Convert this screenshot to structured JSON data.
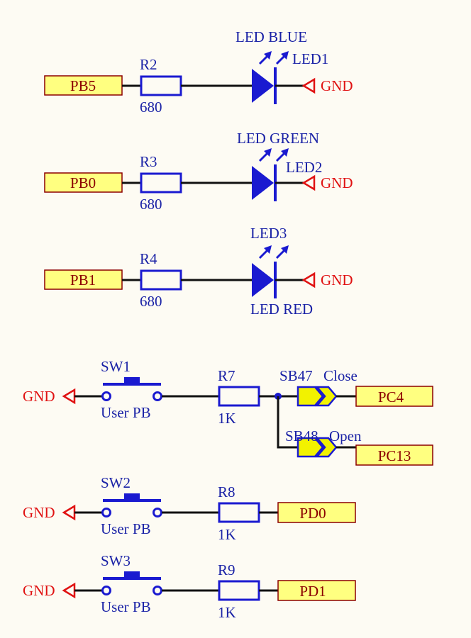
{
  "colors": {
    "background": "#fdfbf3",
    "wire": "#111111",
    "component": "#1a1ad0",
    "component_label": "#1a22a6",
    "ground": "#e01212",
    "port_fill": "#ffff80",
    "port_text": "#8b0000",
    "jumper_fill": "#f2f200"
  },
  "leds": [
    {
      "port": "PB5",
      "res_ref": "R2",
      "res_val": "680",
      "led_ref": "LED1",
      "led_name": "LED BLUE",
      "gnd": "GND"
    },
    {
      "port": "PB0",
      "res_ref": "R3",
      "res_val": "680",
      "led_ref": "LED2",
      "led_name": "LED GREEN",
      "gnd": "GND"
    },
    {
      "port": "PB1",
      "res_ref": "R4",
      "res_val": "680",
      "led_ref": "LED3",
      "led_name": "LED RED",
      "gnd": "GND"
    }
  ],
  "switches": [
    {
      "gnd": "GND",
      "sw_ref": "SW1",
      "sw_val": "User PB",
      "res_ref": "R7",
      "res_val": "1K"
    },
    {
      "gnd": "GND",
      "sw_ref": "SW2",
      "sw_val": "User PB",
      "res_ref": "R8",
      "res_val": "1K",
      "port": "PD0"
    },
    {
      "gnd": "GND",
      "sw_ref": "SW3",
      "sw_val": "User PB",
      "res_ref": "R9",
      "res_val": "1K",
      "port": "PD1"
    }
  ],
  "solder_bridges": [
    {
      "ref": "SB47",
      "state": "Close",
      "port": "PC4"
    },
    {
      "ref": "SB48",
      "state": "Open",
      "port": "PC13"
    }
  ]
}
